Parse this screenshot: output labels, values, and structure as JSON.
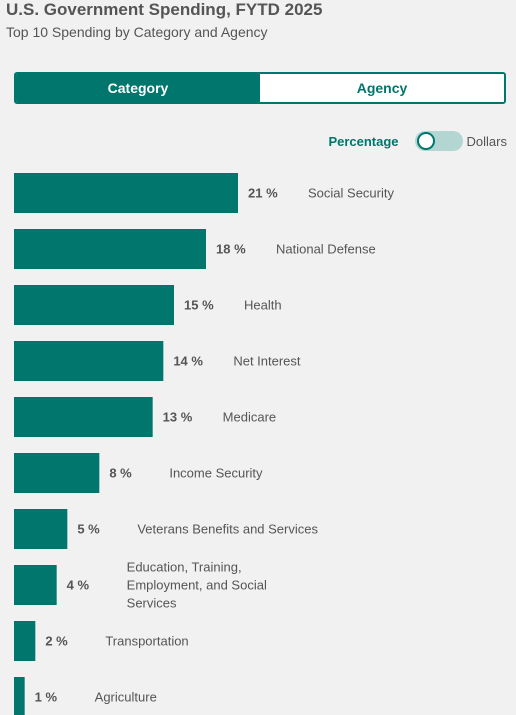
{
  "header": {
    "title": "U.S. Government Spending, FYTD 2025",
    "subtitle": "Top 10 Spending by Category and Agency"
  },
  "tabs": {
    "category_label": "Category",
    "agency_label": "Agency",
    "active": "Category"
  },
  "toggle": {
    "left_label": "Percentage",
    "right_label": "Dollars",
    "selected": "Percentage"
  },
  "colors": {
    "accent": "#00766c",
    "toggle_track": "#b3d6d3",
    "background": "#f1f1f1",
    "text": "#555555"
  },
  "chart_data": {
    "type": "bar",
    "orientation": "horizontal",
    "title": "U.S. Government Spending, FYTD 2025",
    "subtitle": "Top 10 Spending by Category and Agency",
    "unit": "%",
    "categories": [
      "Social Security",
      "National Defense",
      "Health",
      "Net Interest",
      "Medicare",
      "Income Security",
      "Veterans Benefits and Services",
      "Education, Training, Employment, and Social Services",
      "Transportation",
      "Agriculture"
    ],
    "values": [
      21,
      18,
      15,
      14,
      13,
      8,
      5,
      4,
      2,
      1
    ],
    "xlim": [
      0,
      21
    ],
    "grid": false,
    "legend": "none"
  }
}
